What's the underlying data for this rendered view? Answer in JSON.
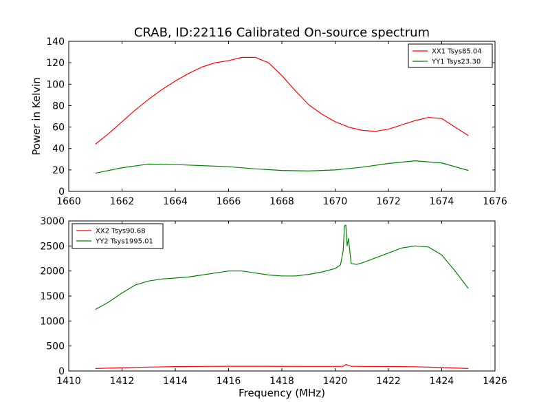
{
  "figure": {
    "title": "CRAB, ID:22116 Calibrated On-source spectrum"
  },
  "chart_data": [
    {
      "type": "line",
      "title": "CRAB, ID:22116 Calibrated On-source spectrum",
      "xlabel": "",
      "ylabel": "Power in Kelvin",
      "xlim": [
        1660,
        1676
      ],
      "ylim": [
        0,
        140
      ],
      "xticks": [
        1660,
        1662,
        1664,
        1666,
        1668,
        1670,
        1672,
        1674,
        1676
      ],
      "yticks": [
        0,
        20,
        40,
        60,
        80,
        100,
        120,
        140
      ],
      "grid": false,
      "legend": "top-right",
      "series": [
        {
          "name": "XX1 Tsys85.04",
          "color": "#ff0000",
          "x": [
            1661.0,
            1661.5,
            1662.0,
            1662.5,
            1663.0,
            1663.5,
            1664.0,
            1664.5,
            1665.0,
            1665.5,
            1666.0,
            1666.5,
            1667.0,
            1667.5,
            1668.0,
            1668.5,
            1669.0,
            1669.5,
            1670.0,
            1670.5,
            1671.0,
            1671.5,
            1672.0,
            1672.5,
            1673.0,
            1673.5,
            1674.0,
            1674.5,
            1675.0
          ],
          "y": [
            44,
            54,
            65,
            76,
            86,
            95,
            103,
            110,
            116,
            120,
            122,
            125,
            125,
            120,
            108,
            94,
            81,
            72,
            65,
            60,
            57,
            56,
            58,
            62,
            66,
            69,
            68,
            60,
            52
          ]
        },
        {
          "name": "YY1 Tsys23.30",
          "color": "#008000",
          "x": [
            1661.0,
            1662.0,
            1663.0,
            1664.0,
            1665.0,
            1666.0,
            1667.0,
            1668.0,
            1669.0,
            1670.0,
            1671.0,
            1672.0,
            1673.0,
            1674.0,
            1675.0
          ],
          "y": [
            17,
            22,
            25.5,
            25,
            24,
            23,
            21,
            19.5,
            19,
            20,
            22.5,
            26,
            28.5,
            26.5,
            19.5
          ]
        }
      ]
    },
    {
      "type": "line",
      "title": "",
      "xlabel": "Frequency (MHz)",
      "ylabel": "",
      "xlim": [
        1410,
        1426
      ],
      "ylim": [
        0,
        3000
      ],
      "xticks": [
        1410,
        1412,
        1414,
        1416,
        1418,
        1420,
        1422,
        1424,
        1426
      ],
      "yticks": [
        0,
        500,
        1000,
        1500,
        2000,
        2500,
        3000
      ],
      "grid": false,
      "legend": "top-left",
      "series": [
        {
          "name": "XX2 Tsys90.68",
          "color": "#ff0000",
          "x": [
            1411.0,
            1412.0,
            1413.0,
            1414.0,
            1415.0,
            1416.0,
            1417.0,
            1418.0,
            1419.0,
            1420.0,
            1420.3,
            1420.4,
            1420.6,
            1421.0,
            1422.0,
            1423.0,
            1424.0,
            1425.0
          ],
          "y": [
            50,
            65,
            78,
            88,
            92,
            95,
            95,
            93,
            92,
            92,
            95,
            130,
            95,
            92,
            90,
            85,
            70,
            50
          ]
        },
        {
          "name": "YY2 Tsys1995.01",
          "color": "#008000",
          "x": [
            1411.0,
            1411.5,
            1412.0,
            1412.5,
            1413.0,
            1413.5,
            1414.0,
            1414.5,
            1415.0,
            1415.5,
            1416.0,
            1416.5,
            1417.0,
            1417.5,
            1418.0,
            1418.5,
            1419.0,
            1419.5,
            1420.0,
            1420.2,
            1420.3,
            1420.35,
            1420.4,
            1420.45,
            1420.5,
            1420.6,
            1420.8,
            1421.0,
            1421.5,
            1422.0,
            1422.5,
            1423.0,
            1423.5,
            1424.0,
            1424.5,
            1425.0
          ],
          "y": [
            1230,
            1380,
            1560,
            1720,
            1800,
            1840,
            1860,
            1880,
            1920,
            1960,
            2000,
            2000,
            1960,
            1920,
            1900,
            1900,
            1930,
            1980,
            2050,
            2120,
            2400,
            2900,
            2920,
            2500,
            2650,
            2150,
            2130,
            2160,
            2260,
            2360,
            2460,
            2500,
            2480,
            2320,
            2000,
            1650
          ]
        }
      ]
    }
  ]
}
